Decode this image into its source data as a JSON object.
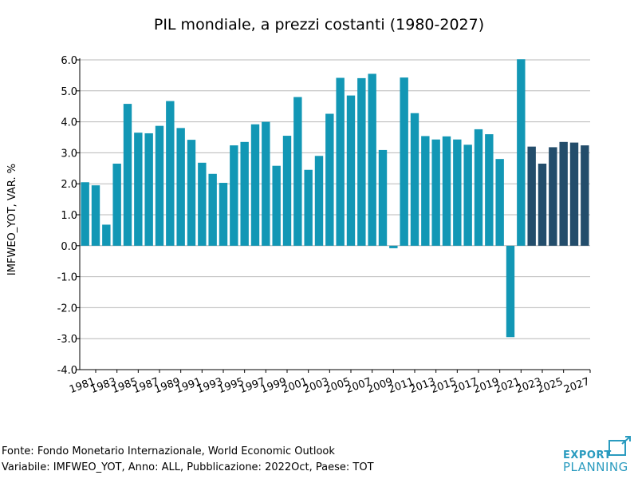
{
  "chart_data": {
    "type": "bar",
    "title": "PIL mondiale, a prezzi costanti (1980-2027)",
    "ylabel": "IMFWEO_YOT, VAR. %",
    "xlabel": "",
    "ylim": [
      -4.0,
      6.0
    ],
    "yticks": [
      "6.0",
      "5.0",
      "4.0",
      "3.0",
      "2.0",
      "1.0",
      "0.0",
      "-1.0",
      "-2.0",
      "-3.0",
      "-4.0"
    ],
    "categories": [
      "1980",
      "1981",
      "1982",
      "1983",
      "1984",
      "1985",
      "1986",
      "1987",
      "1988",
      "1989",
      "1990",
      "1991",
      "1992",
      "1993",
      "1994",
      "1995",
      "1996",
      "1997",
      "1998",
      "1999",
      "2000",
      "2001",
      "2002",
      "2003",
      "2004",
      "2005",
      "2006",
      "2007",
      "2008",
      "2009",
      "2010",
      "2011",
      "2012",
      "2013",
      "2014",
      "2015",
      "2016",
      "2017",
      "2018",
      "2019",
      "2020",
      "2021",
      "2022",
      "2023",
      "2024",
      "2025",
      "2026",
      "2027"
    ],
    "x_tick_labels": [
      "1981",
      "1983",
      "1985",
      "1987",
      "1989",
      "1991",
      "1993",
      "1995",
      "1997",
      "1999",
      "2001",
      "2003",
      "2005",
      "2007",
      "2009",
      "2011",
      "2013",
      "2015",
      "2017",
      "2019",
      "2021",
      "2023",
      "2025",
      "2027"
    ],
    "values": [
      2.05,
      1.95,
      0.68,
      2.65,
      4.58,
      3.65,
      3.63,
      3.87,
      4.67,
      3.8,
      3.42,
      2.68,
      2.32,
      2.03,
      3.24,
      3.35,
      3.92,
      4.0,
      2.58,
      3.55,
      4.8,
      2.45,
      2.9,
      4.26,
      5.42,
      4.85,
      5.41,
      5.55,
      3.09,
      -0.08,
      5.43,
      4.28,
      3.54,
      3.43,
      3.53,
      3.43,
      3.26,
      3.76,
      3.6,
      2.8,
      -2.95,
      6.02,
      3.2,
      2.65,
      3.18,
      3.35,
      3.33,
      3.24
    ],
    "forecast_from": "2022",
    "colors": {
      "actual": "#1297b5",
      "forecast": "#234d6b",
      "grid": "#b8b8b8"
    }
  },
  "footer": {
    "source": "Fonte: Fondo Monetario Internazionale, World Economic Outlook",
    "variable": "Variabile: IMFWEO_YOT, Anno: ALL, Pubblicazione: 2022Oct, Paese: TOT"
  },
  "logo": {
    "line1": "EXPORT",
    "line2": "PLANNING"
  }
}
